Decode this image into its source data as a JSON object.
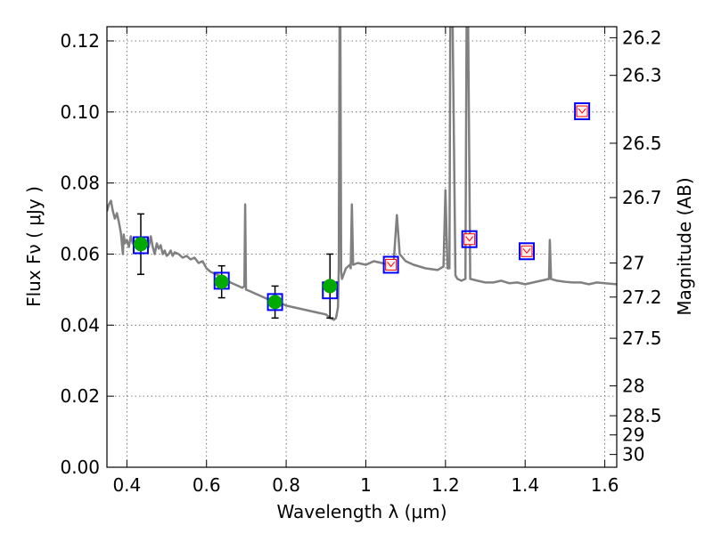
{
  "chart_data": {
    "type": "scatter",
    "xlabel": "Wavelength  λ (μm)",
    "ylabel": "Flux  Fν  ( μJy )",
    "ylabel_right": "Magnitude (AB)",
    "xlim": [
      0.35,
      1.63
    ],
    "ylim": [
      0.0,
      0.124
    ],
    "grid": true,
    "x_ticks": [
      {
        "value": 0.4,
        "label": "0.4"
      },
      {
        "value": 0.6,
        "label": "0.6"
      },
      {
        "value": 0.8,
        "label": "0.8"
      },
      {
        "value": 1.0,
        "label": "1"
      },
      {
        "value": 1.2,
        "label": "1.2"
      },
      {
        "value": 1.4,
        "label": "1.4"
      },
      {
        "value": 1.6,
        "label": "1.6"
      }
    ],
    "y_ticks": [
      {
        "value": 0.0,
        "label": "0.00"
      },
      {
        "value": 0.02,
        "label": "0.02"
      },
      {
        "value": 0.04,
        "label": "0.04"
      },
      {
        "value": 0.06,
        "label": "0.06"
      },
      {
        "value": 0.08,
        "label": "0.08"
      },
      {
        "value": 0.1,
        "label": "0.10"
      },
      {
        "value": 0.12,
        "label": "0.12"
      }
    ],
    "right_ticks": [
      {
        "flux": 0.1209,
        "label": "26.2"
      },
      {
        "flux": 0.1103,
        "label": "26.3"
      },
      {
        "flux": 0.0912,
        "label": "26.5"
      },
      {
        "flux": 0.0759,
        "label": "26.7"
      },
      {
        "flux": 0.0575,
        "label": "27"
      },
      {
        "flux": 0.0479,
        "label": "27.2"
      },
      {
        "flux": 0.0363,
        "label": "27.5"
      },
      {
        "flux": 0.0229,
        "label": "28"
      },
      {
        "flux": 0.0145,
        "label": "28.5"
      },
      {
        "flux": 0.0091,
        "label": "29"
      },
      {
        "flux": 0.0036,
        "label": "30"
      }
    ],
    "series": [
      {
        "kind": "model_spectrum",
        "color": "#808080",
        "points": [
          [
            0.35,
            0.072
          ],
          [
            0.355,
            0.074
          ],
          [
            0.36,
            0.075
          ],
          [
            0.365,
            0.072
          ],
          [
            0.37,
            0.07
          ],
          [
            0.375,
            0.0715
          ],
          [
            0.38,
            0.069
          ],
          [
            0.385,
            0.066
          ],
          [
            0.39,
            0.06
          ],
          [
            0.392,
            0.0655
          ],
          [
            0.395,
            0.063
          ],
          [
            0.4,
            0.064
          ],
          [
            0.405,
            0.062
          ],
          [
            0.41,
            0.065
          ],
          [
            0.415,
            0.063
          ],
          [
            0.42,
            0.0625
          ],
          [
            0.425,
            0.064
          ],
          [
            0.43,
            0.062
          ],
          [
            0.435,
            0.0635
          ],
          [
            0.44,
            0.063
          ],
          [
            0.445,
            0.0615
          ],
          [
            0.45,
            0.064
          ],
          [
            0.455,
            0.062
          ],
          [
            0.46,
            0.065
          ],
          [
            0.465,
            0.062
          ],
          [
            0.47,
            0.06
          ],
          [
            0.475,
            0.063
          ],
          [
            0.48,
            0.0615
          ],
          [
            0.485,
            0.0625
          ],
          [
            0.49,
            0.06
          ],
          [
            0.495,
            0.061
          ],
          [
            0.5,
            0.0595
          ],
          [
            0.505,
            0.06
          ],
          [
            0.51,
            0.061
          ],
          [
            0.515,
            0.0595
          ],
          [
            0.52,
            0.0605
          ],
          [
            0.53,
            0.06
          ],
          [
            0.54,
            0.059
          ],
          [
            0.55,
            0.0595
          ],
          [
            0.56,
            0.0585
          ],
          [
            0.57,
            0.059
          ],
          [
            0.58,
            0.0575
          ],
          [
            0.59,
            0.058
          ],
          [
            0.6,
            0.056
          ],
          [
            0.61,
            0.055
          ],
          [
            0.62,
            0.0545
          ],
          [
            0.63,
            0.054
          ],
          [
            0.64,
            0.0535
          ],
          [
            0.65,
            0.053
          ],
          [
            0.66,
            0.052
          ],
          [
            0.67,
            0.0515
          ],
          [
            0.68,
            0.051
          ],
          [
            0.69,
            0.0505
          ],
          [
            0.695,
            0.051
          ],
          [
            0.697,
            0.074
          ],
          [
            0.699,
            0.05
          ],
          [
            0.71,
            0.0495
          ],
          [
            0.72,
            0.049
          ],
          [
            0.74,
            0.048
          ],
          [
            0.76,
            0.047
          ],
          [
            0.78,
            0.0465
          ],
          [
            0.8,
            0.0455
          ],
          [
            0.82,
            0.045
          ],
          [
            0.84,
            0.0445
          ],
          [
            0.86,
            0.044
          ],
          [
            0.88,
            0.0435
          ],
          [
            0.9,
            0.043
          ],
          [
            0.91,
            0.042
          ],
          [
            0.92,
            0.0415
          ],
          [
            0.925,
            0.042
          ],
          [
            0.93,
            0.045
          ],
          [
            0.932,
            0.056
          ],
          [
            0.934,
            0.124
          ],
          [
            0.936,
            0.124
          ],
          [
            0.938,
            0.055
          ],
          [
            0.94,
            0.053
          ],
          [
            0.95,
            0.056
          ],
          [
            0.96,
            0.057
          ],
          [
            0.962,
            0.056
          ],
          [
            0.965,
            0.074
          ],
          [
            0.968,
            0.057
          ],
          [
            0.98,
            0.0575
          ],
          [
            1.0,
            0.057
          ],
          [
            1.02,
            0.058
          ],
          [
            1.04,
            0.0575
          ],
          [
            1.06,
            0.057
          ],
          [
            1.07,
            0.058
          ],
          [
            1.078,
            0.071
          ],
          [
            1.085,
            0.06
          ],
          [
            1.1,
            0.058
          ],
          [
            1.12,
            0.057
          ],
          [
            1.15,
            0.056
          ],
          [
            1.18,
            0.0555
          ],
          [
            1.195,
            0.0565
          ],
          [
            1.2,
            0.078
          ],
          [
            1.205,
            0.056
          ],
          [
            1.21,
            0.056
          ],
          [
            1.212,
            0.124
          ],
          [
            1.218,
            0.124
          ],
          [
            1.225,
            0.054
          ],
          [
            1.23,
            0.053
          ],
          [
            1.24,
            0.0525
          ],
          [
            1.25,
            0.053
          ],
          [
            1.253,
            0.124
          ],
          [
            1.257,
            0.124
          ],
          [
            1.262,
            0.053
          ],
          [
            1.28,
            0.0525
          ],
          [
            1.3,
            0.052
          ],
          [
            1.32,
            0.052
          ],
          [
            1.34,
            0.0525
          ],
          [
            1.36,
            0.0518
          ],
          [
            1.38,
            0.052
          ],
          [
            1.4,
            0.0515
          ],
          [
            1.42,
            0.052
          ],
          [
            1.44,
            0.0525
          ],
          [
            1.46,
            0.053
          ],
          [
            1.462,
            0.064
          ],
          [
            1.465,
            0.053
          ],
          [
            1.48,
            0.0525
          ],
          [
            1.5,
            0.0522
          ],
          [
            1.52,
            0.052
          ],
          [
            1.54,
            0.052
          ],
          [
            1.56,
            0.0515
          ],
          [
            1.58,
            0.052
          ],
          [
            1.6,
            0.0518
          ],
          [
            1.63,
            0.0515
          ]
        ]
      },
      {
        "kind": "observed_photometry",
        "color": "#00aa00",
        "points": [
          {
            "x": 0.435,
            "y": 0.0628,
            "yerr": 0.0085
          },
          {
            "x": 0.638,
            "y": 0.0522,
            "yerr": 0.0045
          },
          {
            "x": 0.772,
            "y": 0.0465,
            "yerr": 0.0045
          },
          {
            "x": 0.91,
            "y": 0.051,
            "yerr": 0.009
          }
        ]
      },
      {
        "kind": "model_photometry",
        "color": "#0000ff",
        "points": [
          {
            "x": 0.435,
            "y": 0.0625
          },
          {
            "x": 0.638,
            "y": 0.0525
          },
          {
            "x": 0.772,
            "y": 0.0465
          },
          {
            "x": 0.91,
            "y": 0.0498
          },
          {
            "x": 1.063,
            "y": 0.057
          },
          {
            "x": 1.26,
            "y": 0.0642
          },
          {
            "x": 1.404,
            "y": 0.0608
          },
          {
            "x": 1.543,
            "y": 0.1002
          }
        ]
      },
      {
        "kind": "upper_limits",
        "color": "#ff0000",
        "points": [
          {
            "x": 1.063,
            "y": 0.057
          },
          {
            "x": 1.26,
            "y": 0.0642
          },
          {
            "x": 1.404,
            "y": 0.0608
          },
          {
            "x": 1.543,
            "y": 0.1002
          }
        ]
      }
    ]
  }
}
